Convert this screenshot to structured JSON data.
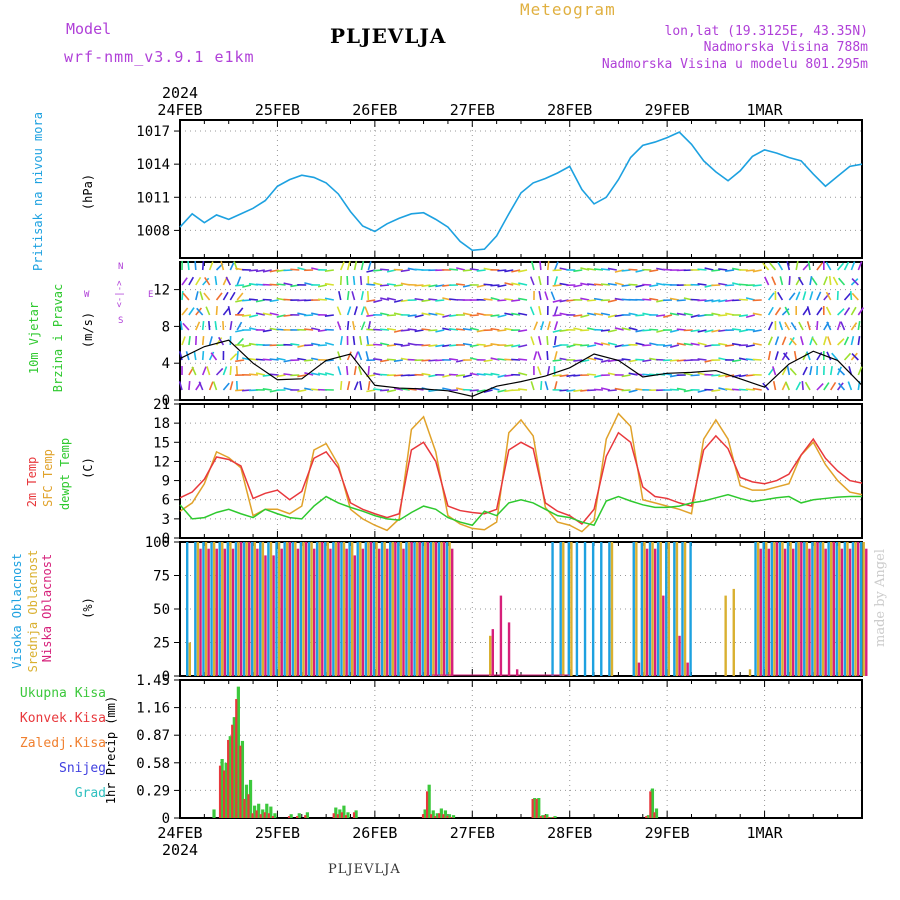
{
  "header": {
    "model_label": "Model",
    "model_name": "wrf-nmm_v3.9.1 e1km",
    "station": "PLJEVLJA",
    "meteogram": "Meteogram",
    "lonlat": "lon,lat (19.3125E, 43.35N)",
    "elevation": "Nadmorska Visina 788m",
    "model_elevation": "Nadmorska Visina u modelu 801.295m",
    "footer_station": "PLJEVLJA",
    "watermark": "made by Angel"
  },
  "axis_dates": {
    "year": "2024",
    "labels": [
      "24FEB",
      "25FEB",
      "26FEB",
      "27FEB",
      "28FEB",
      "29FEB",
      "1MAR"
    ]
  },
  "panel_labels": {
    "pressure": {
      "name": "Pritisak na nivou mora",
      "unit": "(hPa)"
    },
    "wind": {
      "name1": "10m Vjetar",
      "name2": "Brzina i Pravac",
      "unit": "(m/s)",
      "compass_n": "N",
      "compass_e": "E",
      "compass_w": "W",
      "compass_s": "S",
      "compass_arrows": "<-|->"
    },
    "temp": {
      "t2m": "2m Temp",
      "sfc": "SFC Temp",
      "dew": "dewpt Temp",
      "unit": "(C)"
    },
    "cloud": {
      "high": "Visoka Oblacnost",
      "mid": "Srednja Oblacnost",
      "low": "Niska Oblacnost",
      "unit": "(%)"
    },
    "precip": {
      "unit": "1hr Precip (mm)",
      "legend": [
        "Ukupna Kisa",
        "Konvek.Kisa",
        "Zaledj.Kisa",
        "Snijeg",
        "Grad"
      ]
    }
  },
  "colors": {
    "pressure": "#1da1e0",
    "t2m": "#e8383c",
    "sfc": "#e0a22a",
    "dew": "#2ec92e",
    "cloud_high": "#1da1e0",
    "cloud_mid": "#d9b030",
    "cloud_low": "#d6207a",
    "precip_total": "#3cc83c",
    "precip_conv": "#e8383c",
    "precip_frz": "#f08030",
    "snow": "#4040e0",
    "hail": "#30c0c0",
    "purple": "#b040d8",
    "gold": "#e0b040"
  },
  "chart_data": [
    {
      "type": "line",
      "title": "",
      "ylabel": "(hPa)",
      "x_hours": [
        0,
        3,
        6,
        9,
        12,
        15,
        18,
        21,
        24,
        27,
        30,
        33,
        36,
        39,
        42,
        45,
        48,
        51,
        54,
        57,
        60,
        63,
        66,
        69,
        72,
        75,
        78,
        81,
        84,
        87,
        90,
        93,
        96,
        99,
        102,
        105,
        108,
        111,
        114,
        117,
        120,
        123,
        126,
        129,
        132,
        135,
        138,
        141,
        144,
        147,
        150,
        153,
        156,
        159,
        162,
        165,
        168
      ],
      "values": [
        1008.3,
        1009.5,
        1008.7,
        1009.4,
        1009.0,
        1009.5,
        1010.0,
        1010.7,
        1012.0,
        1012.6,
        1013.0,
        1012.8,
        1012.3,
        1011.3,
        1009.7,
        1008.4,
        1007.9,
        1008.6,
        1009.1,
        1009.5,
        1009.6,
        1009.0,
        1008.3,
        1007.0,
        1006.2,
        1006.3,
        1007.5,
        1009.5,
        1011.4,
        1012.3,
        1012.7,
        1013.2,
        1013.8,
        1011.7,
        1010.4,
        1011.0,
        1012.6,
        1014.6,
        1015.7,
        1016.0,
        1016.4,
        1016.9,
        1015.8,
        1014.3,
        1013.3,
        1012.5,
        1013.4,
        1014.7,
        1015.3,
        1015.0,
        1014.6,
        1014.3,
        1013.1,
        1012.0,
        1012.9,
        1013.8,
        1014.0
      ],
      "ylim": [
        1005.5,
        1018
      ],
      "yticks": [
        1008,
        1011,
        1014,
        1017
      ]
    },
    {
      "type": "line",
      "title": "",
      "ylabel": "(m/s)",
      "x_hours": [
        0,
        6,
        12,
        18,
        24,
        30,
        36,
        42,
        48,
        54,
        60,
        66,
        72,
        78,
        84,
        90,
        96,
        102,
        108,
        114,
        120,
        126,
        132,
        138,
        144,
        150,
        156,
        162,
        168
      ],
      "values": [
        4.5,
        5.8,
        6.5,
        4.0,
        2.2,
        2.3,
        4.3,
        5.0,
        1.6,
        1.3,
        1.2,
        1.0,
        0.4,
        1.5,
        2.0,
        2.6,
        3.5,
        5.0,
        4.3,
        2.5,
        2.9,
        3.0,
        3.2,
        2.3,
        1.4,
        3.9,
        5.3,
        4.3,
        1.6
      ],
      "ylim": [
        0,
        15
      ],
      "yticks": [
        0,
        4,
        8,
        12
      ]
    },
    {
      "type": "line",
      "title": "",
      "ylabel": "(C)",
      "x_hours": [
        0,
        3,
        6,
        9,
        12,
        15,
        18,
        21,
        24,
        27,
        30,
        33,
        36,
        39,
        42,
        45,
        48,
        51,
        54,
        57,
        60,
        63,
        66,
        69,
        72,
        75,
        78,
        81,
        84,
        87,
        90,
        93,
        96,
        99,
        102,
        105,
        108,
        111,
        114,
        117,
        120,
        123,
        126,
        129,
        132,
        135,
        138,
        141,
        144,
        147,
        150,
        153,
        156,
        159,
        162,
        165,
        168
      ],
      "series": [
        {
          "name": "2m Temp",
          "values": [
            6.3,
            7.2,
            9.2,
            12.7,
            12.3,
            11.3,
            6.2,
            7.0,
            7.5,
            6.0,
            7.3,
            12.5,
            13.5,
            11.0,
            5.5,
            4.5,
            3.8,
            3.2,
            3.8,
            13.8,
            15.0,
            12.0,
            5.0,
            4.3,
            4.0,
            3.8,
            4.5,
            13.8,
            15.0,
            14.0,
            5.5,
            4.2,
            3.5,
            2.2,
            4.5,
            12.8,
            16.5,
            15.0,
            8.0,
            6.5,
            6.2,
            5.5,
            5.0,
            13.8,
            16.0,
            14.0,
            9.5,
            8.8,
            8.5,
            9.0,
            10.0,
            13.0,
            15.5,
            12.5,
            10.5,
            9.0,
            8.6
          ]
        },
        {
          "name": "SFC Temp",
          "values": [
            4.2,
            5.5,
            8.5,
            13.5,
            12.6,
            11.0,
            3.5,
            4.5,
            4.5,
            3.8,
            5.0,
            13.8,
            14.8,
            11.5,
            4.5,
            3.0,
            2.0,
            1.2,
            3.0,
            17.0,
            19.0,
            13.5,
            3.5,
            2.2,
            1.5,
            1.3,
            2.5,
            16.5,
            18.5,
            16.0,
            4.8,
            2.5,
            2.0,
            1.0,
            2.8,
            15.5,
            19.5,
            17.5,
            6.0,
            5.5,
            5.0,
            4.5,
            3.8,
            15.5,
            18.5,
            15.5,
            8.2,
            7.5,
            7.5,
            8.0,
            8.5,
            13.0,
            15.0,
            11.5,
            9.0,
            7.2,
            6.8
          ]
        },
        {
          "name": "dewpt Temp",
          "values": [
            5.2,
            3.0,
            3.2,
            4.0,
            4.5,
            3.8,
            3.2,
            4.5,
            3.8,
            3.2,
            3.0,
            5.0,
            6.5,
            5.5,
            4.8,
            4.2,
            3.5,
            3.0,
            2.8,
            4.0,
            5.0,
            4.5,
            3.2,
            2.5,
            2.0,
            4.2,
            3.5,
            5.5,
            6.0,
            5.5,
            4.5,
            3.5,
            3.2,
            2.5,
            2.0,
            5.8,
            6.5,
            5.8,
            5.2,
            4.8,
            4.8,
            5.0,
            5.5,
            5.8,
            6.3,
            6.8,
            6.2,
            5.7,
            6.0,
            6.3,
            6.5,
            5.5,
            6.0,
            6.2,
            6.4,
            6.5,
            6.5
          ]
        }
      ],
      "ylim": [
        0,
        21
      ],
      "yticks": [
        0,
        3,
        6,
        9,
        12,
        15,
        18,
        21
      ]
    },
    {
      "type": "bar",
      "title": "",
      "ylabel": "(%)",
      "x_hours": [
        0,
        2,
        4,
        6,
        8,
        10,
        12,
        14,
        16,
        18,
        20,
        22,
        24,
        26,
        28,
        30,
        32,
        34,
        36,
        38,
        40,
        42,
        44,
        46,
        48,
        50,
        52,
        54,
        56,
        58,
        60,
        62,
        64,
        66,
        68,
        70,
        72,
        74,
        76,
        78,
        80,
        82,
        84,
        86,
        88,
        90,
        92,
        94,
        96,
        98,
        100,
        102,
        104,
        106,
        108,
        110,
        112,
        114,
        116,
        118,
        120,
        122,
        124,
        126,
        128,
        130,
        132,
        134,
        136,
        138,
        140,
        142,
        144,
        146,
        148,
        150,
        152,
        154,
        156,
        158,
        160,
        162,
        164,
        166
      ],
      "series": [
        {
          "name": "Visoka Oblacnost",
          "values": [
            100,
            100,
            100,
            100,
            100,
            100,
            100,
            100,
            100,
            100,
            100,
            100,
            100,
            100,
            100,
            100,
            100,
            100,
            100,
            100,
            100,
            100,
            100,
            100,
            100,
            100,
            100,
            100,
            100,
            100,
            100,
            100,
            100,
            0,
            0,
            0,
            0,
            0,
            0,
            0,
            0,
            0,
            0,
            0,
            0,
            100,
            100,
            100,
            100,
            100,
            100,
            100,
            100,
            0,
            0,
            100,
            100,
            100,
            100,
            100,
            100,
            100,
            100,
            0,
            0,
            0,
            0,
            0,
            0,
            0,
            100,
            100,
            100,
            100,
            100,
            100,
            100,
            100,
            100,
            100,
            100,
            100,
            100,
            100
          ]
        },
        {
          "name": "Srednja Oblacnost",
          "values": [
            25,
            100,
            100,
            100,
            100,
            100,
            100,
            100,
            100,
            100,
            100,
            100,
            100,
            100,
            100,
            100,
            100,
            100,
            100,
            100,
            100,
            100,
            100,
            100,
            100,
            100,
            100,
            100,
            100,
            100,
            100,
            100,
            100,
            0,
            0,
            0,
            0,
            30,
            0,
            0,
            0,
            0,
            0,
            0,
            0,
            0,
            100,
            100,
            0,
            0,
            0,
            0,
            100,
            0,
            0,
            100,
            100,
            100,
            100,
            100,
            100,
            100,
            0,
            0,
            0,
            0,
            60,
            65,
            0,
            5,
            100,
            100,
            100,
            100,
            100,
            100,
            100,
            100,
            100,
            100,
            100,
            100,
            100,
            100
          ]
        },
        {
          "name": "Niska Oblacnost",
          "values": [
            0,
            95,
            95,
            95,
            95,
            95,
            100,
            100,
            95,
            90,
            90,
            95,
            100,
            95,
            100,
            95,
            100,
            95,
            100,
            95,
            90,
            95,
            100,
            95,
            95,
            100,
            95,
            100,
            100,
            100,
            100,
            100,
            95,
            0,
            0,
            0,
            0,
            35,
            60,
            40,
            5,
            0,
            0,
            0,
            0,
            0,
            0,
            0,
            0,
            0,
            0,
            0,
            0,
            0,
            0,
            10,
            95,
            95,
            60,
            0,
            30,
            10,
            0,
            0,
            0,
            0,
            0,
            0,
            0,
            0,
            95,
            95,
            100,
            95,
            95,
            100,
            95,
            100,
            95,
            100,
            95,
            95,
            100,
            95
          ]
        }
      ],
      "ylim": [
        0,
        100
      ],
      "yticks": [
        0,
        25,
        50,
        75,
        100
      ]
    },
    {
      "type": "bar",
      "title": "",
      "ylabel": "1hr Precip (mm)",
      "x_hours": [
        7,
        9,
        10,
        11,
        12,
        13,
        14,
        15,
        16,
        17,
        18,
        19,
        20,
        21,
        22,
        26,
        28,
        30,
        37,
        38,
        39,
        40,
        42,
        59,
        60,
        61,
        62,
        63,
        64,
        65,
        66,
        86,
        87,
        88,
        89,
        90,
        91,
        114,
        115,
        116
      ],
      "series": [
        {
          "name": "Ukupna Kisa",
          "values": [
            0.09,
            0.62,
            0.58,
            0.86,
            1.06,
            1.38,
            0.81,
            0.35,
            0.4,
            0.13,
            0.15,
            0.09,
            0.15,
            0.12,
            0.05,
            0.04,
            0.05,
            0.06,
            0.11,
            0.09,
            0.13,
            0.06,
            0.08,
            0.09,
            0.35,
            0.08,
            0.05,
            0.1,
            0.08,
            0.04,
            0.03,
            0.21,
            0.21,
            0.03,
            0.04,
            0.01,
            0.02,
            0.03,
            0.31,
            0.1
          ]
        },
        {
          "name": "Konvek.Kisa",
          "values": [
            0,
            0.55,
            0.5,
            0.82,
            0.98,
            1.25,
            0.76,
            0.2,
            0.25,
            0.05,
            0.08,
            0.04,
            0.06,
            0.05,
            0.02,
            0.02,
            0.02,
            0.03,
            0.05,
            0.04,
            0.06,
            0.03,
            0.06,
            0.04,
            0.28,
            0.04,
            0.02,
            0.05,
            0.04,
            0.02,
            0.01,
            0.2,
            0.2,
            0.02,
            0.03,
            0.01,
            0.01,
            0.02,
            0.28,
            0.06
          ]
        }
      ],
      "ylim": [
        0,
        1.45
      ],
      "yticks": [
        0,
        0.29,
        0.58,
        0.87,
        1.16,
        1.45
      ]
    }
  ]
}
